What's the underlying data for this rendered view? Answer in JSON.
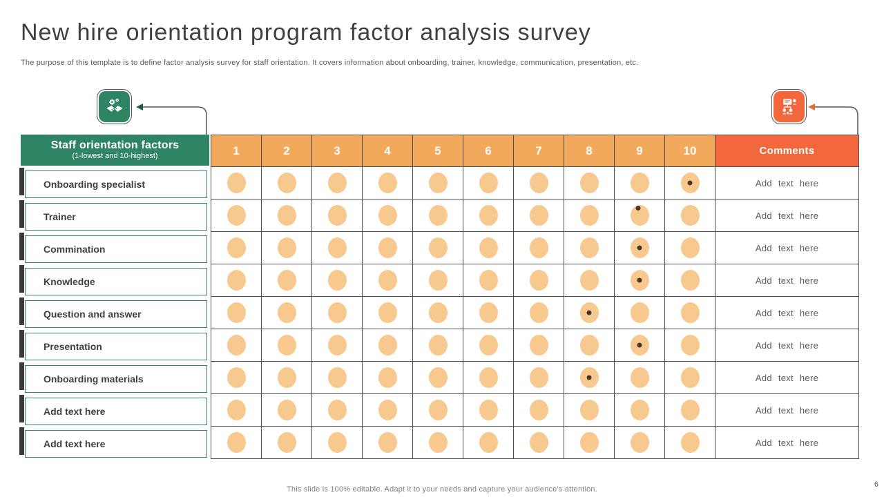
{
  "slide": {
    "title": "New hire orientation program factor analysis survey",
    "subtitle": "The purpose of this template is to define factor analysis survey for staff orientation. It covers information about onboarding, trainer, knowledge, communication, presentation, etc.",
    "footer": "This slide is 100% editable. Adapt it to your needs and capture your audience's attention.",
    "page_number": "6"
  },
  "icons": {
    "left": {
      "name": "handshake-gears-icon",
      "color": "#2E8463"
    },
    "right": {
      "name": "org-chart-icon",
      "color": "#F2683C"
    }
  },
  "table": {
    "factor_header": {
      "title": "Staff orientation factors",
      "subtitle": "(1-lowest and 10-highest)"
    },
    "scale_headers": [
      "1",
      "2",
      "3",
      "4",
      "5",
      "6",
      "7",
      "8",
      "9",
      "10"
    ],
    "comments_header": "Comments",
    "rows": [
      {
        "label": "Onboarding specialist",
        "rating": 10,
        "marker_pos": "center",
        "comment": "Add text here"
      },
      {
        "label": "Trainer",
        "rating": 9,
        "marker_pos": "top",
        "comment": "Add text here"
      },
      {
        "label": "Commination",
        "rating": 9,
        "marker_pos": "center",
        "comment": "Add text here"
      },
      {
        "label": "Knowledge",
        "rating": 9,
        "marker_pos": "center",
        "comment": "Add text here"
      },
      {
        "label": "Question and answer",
        "rating": 8,
        "marker_pos": "center",
        "comment": "Add text here"
      },
      {
        "label": "Presentation",
        "rating": 9,
        "marker_pos": "center",
        "comment": "Add text here"
      },
      {
        "label": "Onboarding materials",
        "rating": 8,
        "marker_pos": "center",
        "comment": "Add text here"
      },
      {
        "label": "Add text here",
        "rating": null,
        "marker_pos": null,
        "comment": "Add text here"
      },
      {
        "label": "Add text here",
        "rating": null,
        "marker_pos": null,
        "comment": "Add text here"
      }
    ]
  },
  "colors": {
    "green": "#2E8463",
    "scale_header_orange": "#F2A95C",
    "comments_header_orange": "#F2683C",
    "dot_fill": "#F8C98E",
    "marker_dot": "#4A3526",
    "grid_line": "#4D4D4D",
    "accent_bar": "#3A3A3A"
  }
}
